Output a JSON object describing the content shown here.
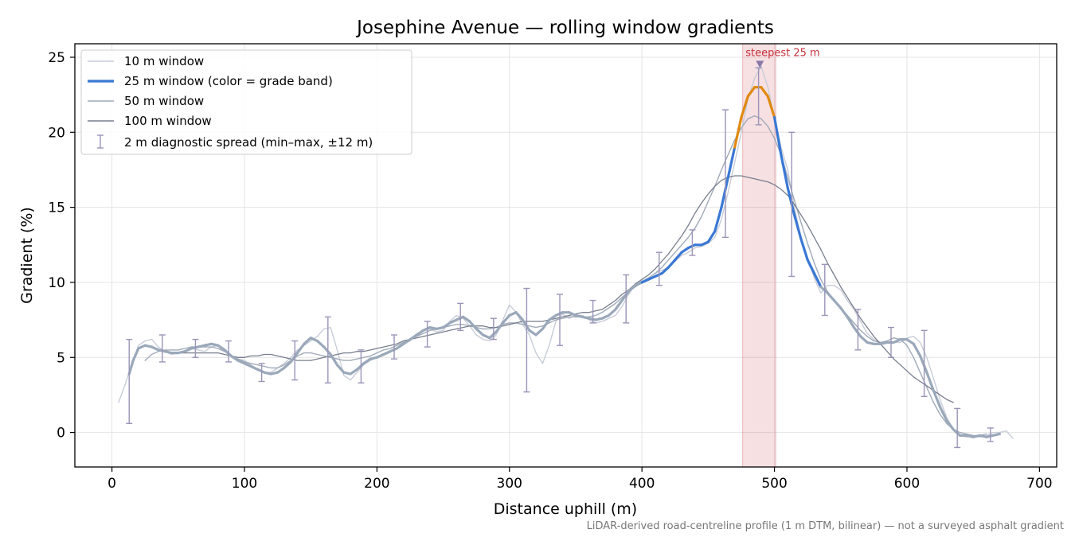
{
  "chart_data": {
    "type": "line",
    "title": "Josephine Avenue — rolling window gradients",
    "xlabel": "Distance uphill (m)",
    "ylabel": "Gradient (%)",
    "xlim": [
      -28,
      713
    ],
    "ylim": [
      -2.3,
      25.9
    ],
    "xticks": [
      0,
      100,
      200,
      300,
      400,
      500,
      600,
      700
    ],
    "yticks": [
      0,
      5,
      10,
      15,
      20,
      25
    ],
    "grid": true,
    "legend_position": "top-left",
    "series": [
      {
        "name": "10 m window",
        "color": "#c8ccd8",
        "x": [
          5,
          10,
          15,
          20,
          25,
          30,
          35,
          40,
          45,
          50,
          55,
          60,
          65,
          70,
          75,
          80,
          85,
          90,
          95,
          100,
          105,
          110,
          115,
          120,
          125,
          130,
          135,
          140,
          145,
          150,
          155,
          160,
          165,
          170,
          175,
          180,
          185,
          190,
          195,
          200,
          205,
          210,
          215,
          220,
          225,
          230,
          235,
          240,
          245,
          250,
          255,
          260,
          265,
          270,
          275,
          280,
          285,
          290,
          295,
          300,
          305,
          310,
          315,
          320,
          325,
          330,
          335,
          340,
          345,
          350,
          355,
          360,
          365,
          370,
          375,
          380,
          385,
          390,
          395,
          400,
          405,
          410,
          415,
          420,
          425,
          430,
          435,
          440,
          445,
          450,
          455,
          460,
          465,
          470,
          475,
          480,
          485,
          490,
          495,
          500,
          505,
          510,
          515,
          520,
          525,
          530,
          535,
          540,
          545,
          550,
          555,
          560,
          565,
          570,
          575,
          580,
          585,
          590,
          595,
          600,
          605,
          610,
          615,
          620,
          625,
          630,
          635,
          640,
          645,
          650,
          655,
          660,
          665,
          670,
          675,
          680
        ],
        "values": [
          2.0,
          3.2,
          4.6,
          5.8,
          6.1,
          6.2,
          5.7,
          5.4,
          5.2,
          5.3,
          5.4,
          5.6,
          5.5,
          5.4,
          5.7,
          5.8,
          5.5,
          5.1,
          4.9,
          4.8,
          4.5,
          4.2,
          4.0,
          4.0,
          4.3,
          4.6,
          5.0,
          5.5,
          5.8,
          6.1,
          6.4,
          6.9,
          7.0,
          5.5,
          3.8,
          3.5,
          4.0,
          4.5,
          4.8,
          5.0,
          5.2,
          5.4,
          5.6,
          5.9,
          6.1,
          6.5,
          6.8,
          6.9,
          6.7,
          6.8,
          7.4,
          7.8,
          7.6,
          7.1,
          6.5,
          6.2,
          6.1,
          6.5,
          7.5,
          8.5,
          8.0,
          7.2,
          6.5,
          5.3,
          4.6,
          5.8,
          7.4,
          7.9,
          7.6,
          7.8,
          7.8,
          7.5,
          7.3,
          7.4,
          7.6,
          7.8,
          8.4,
          9.2,
          9.9,
          10.1,
          10.3,
          10.6,
          10.8,
          11.0,
          11.4,
          11.8,
          12.0,
          12.3,
          12.4,
          12.6,
          13.0,
          14.2,
          16.0,
          18.0,
          20.0,
          22.2,
          23.6,
          24.4,
          23.0,
          21.0,
          19.0,
          17.5,
          15.0,
          13.0,
          11.6,
          10.3,
          9.3,
          9.8,
          9.8,
          9.5,
          8.8,
          8.2,
          7.4,
          6.6,
          6.2,
          6.0,
          6.0,
          6.0,
          6.0,
          6.3,
          6.4,
          6.0,
          5.0,
          3.6,
          2.2,
          1.0,
          0.2,
          -0.2,
          -0.3,
          -0.2,
          -0.3,
          -0.2,
          0.0,
          0.0,
          0.1,
          -0.4
        ]
      },
      {
        "name": "25 m window (color = grade band)",
        "color": "#3a78d4",
        "grade_band_colors": {
          "below_10": "#9aa8ba",
          "10_to_20": "#3a78d4",
          "above_20": "#e08a10"
        },
        "x": [
          13,
          16,
          20,
          25,
          30,
          35,
          40,
          45,
          50,
          55,
          60,
          65,
          70,
          75,
          80,
          85,
          90,
          95,
          100,
          105,
          110,
          115,
          120,
          125,
          130,
          135,
          140,
          145,
          150,
          155,
          160,
          165,
          170,
          175,
          180,
          185,
          190,
          195,
          200,
          205,
          210,
          215,
          220,
          225,
          230,
          235,
          240,
          245,
          250,
          255,
          260,
          265,
          270,
          275,
          280,
          285,
          290,
          295,
          300,
          305,
          310,
          315,
          320,
          325,
          330,
          335,
          340,
          345,
          350,
          355,
          360,
          365,
          370,
          375,
          380,
          385,
          390,
          395,
          400,
          405,
          410,
          415,
          420,
          425,
          430,
          435,
          440,
          445,
          450,
          455,
          460,
          465,
          470,
          475,
          480,
          485,
          490,
          495,
          500,
          505,
          510,
          515,
          520,
          525,
          530,
          535,
          540,
          545,
          550,
          555,
          560,
          565,
          570,
          575,
          580,
          585,
          590,
          595,
          600,
          605,
          610,
          615,
          620,
          625,
          630,
          635,
          640,
          645,
          650,
          655,
          660,
          665,
          670
        ],
        "values": [
          3.9,
          4.8,
          5.6,
          5.8,
          5.7,
          5.5,
          5.4,
          5.3,
          5.3,
          5.4,
          5.6,
          5.7,
          5.8,
          5.9,
          5.8,
          5.5,
          5.1,
          4.8,
          4.6,
          4.4,
          4.2,
          4.0,
          3.9,
          4.0,
          4.3,
          4.7,
          5.3,
          5.9,
          6.3,
          6.1,
          5.7,
          5.2,
          4.5,
          4.0,
          3.9,
          4.2,
          4.6,
          4.9,
          5.0,
          5.2,
          5.4,
          5.6,
          5.9,
          6.2,
          6.5,
          6.8,
          7.0,
          6.9,
          7.0,
          7.3,
          7.5,
          7.7,
          7.4,
          6.9,
          6.5,
          6.3,
          6.7,
          7.3,
          7.8,
          8.0,
          7.5,
          6.8,
          6.5,
          6.9,
          7.5,
          7.8,
          8.0,
          8.0,
          7.8,
          7.7,
          7.6,
          7.5,
          7.6,
          7.8,
          8.2,
          8.8,
          9.4,
          9.8,
          10.0,
          10.2,
          10.4,
          10.6,
          11.0,
          11.5,
          12.0,
          12.3,
          12.5,
          12.5,
          12.7,
          13.4,
          15.0,
          17.0,
          19.0,
          21.0,
          22.4,
          23.0,
          23.0,
          22.4,
          21.0,
          18.5,
          16.3,
          14.5,
          12.9,
          11.5,
          10.6,
          9.7,
          9.3,
          8.8,
          8.3,
          7.7,
          7.0,
          6.4,
          6.0,
          5.9,
          5.9,
          6.0,
          6.0,
          6.2,
          6.2,
          5.9,
          5.1,
          4.0,
          2.8,
          1.7,
          0.8,
          0.2,
          -0.2,
          -0.2,
          -0.3,
          -0.2,
          -0.3,
          -0.2,
          -0.1
        ]
      },
      {
        "name": "50 m window",
        "color": "#a0aab8",
        "x": [
          25,
          30,
          35,
          40,
          45,
          50,
          55,
          60,
          65,
          70,
          75,
          80,
          85,
          90,
          95,
          100,
          105,
          110,
          115,
          120,
          125,
          130,
          135,
          140,
          145,
          150,
          155,
          160,
          165,
          170,
          175,
          180,
          185,
          190,
          195,
          200,
          205,
          210,
          215,
          220,
          225,
          230,
          235,
          240,
          245,
          250,
          255,
          260,
          265,
          270,
          275,
          280,
          285,
          290,
          295,
          300,
          305,
          310,
          315,
          320,
          325,
          330,
          335,
          340,
          345,
          350,
          355,
          360,
          365,
          370,
          375,
          380,
          385,
          390,
          395,
          400,
          405,
          410,
          415,
          420,
          425,
          430,
          435,
          440,
          445,
          450,
          455,
          460,
          465,
          470,
          475,
          480,
          485,
          490,
          495,
          500,
          505,
          510,
          515,
          520,
          525,
          530,
          535,
          540,
          545,
          550,
          555,
          560,
          565,
          570,
          575,
          580,
          585,
          590,
          595,
          600,
          605,
          610,
          615,
          620,
          625,
          630,
          635,
          640,
          645,
          650,
          655,
          660
        ],
        "values": [
          4.8,
          5.2,
          5.4,
          5.5,
          5.5,
          5.5,
          5.6,
          5.7,
          5.7,
          5.7,
          5.7,
          5.6,
          5.4,
          5.1,
          4.9,
          4.7,
          4.6,
          4.5,
          4.4,
          4.3,
          4.3,
          4.5,
          4.8,
          5.1,
          5.3,
          5.3,
          5.2,
          5.1,
          5.0,
          4.9,
          4.8,
          4.8,
          4.9,
          5.0,
          5.1,
          5.3,
          5.5,
          5.6,
          5.8,
          6.0,
          6.2,
          6.4,
          6.6,
          6.8,
          6.9,
          7.0,
          7.1,
          7.2,
          7.2,
          7.1,
          7.0,
          6.9,
          6.9,
          7.0,
          7.2,
          7.3,
          7.3,
          7.2,
          7.1,
          7.0,
          7.1,
          7.3,
          7.5,
          7.6,
          7.7,
          7.7,
          7.7,
          7.7,
          7.8,
          8.0,
          8.3,
          8.6,
          9.0,
          9.4,
          9.7,
          10.0,
          10.3,
          10.6,
          11.0,
          11.5,
          12.0,
          12.5,
          13.0,
          13.6,
          14.4,
          15.4,
          16.4,
          17.5,
          18.5,
          19.5,
          20.3,
          20.9,
          21.1,
          20.9,
          20.4,
          19.6,
          18.5,
          17.0,
          15.5,
          14.0,
          12.6,
          11.3,
          10.2,
          9.4,
          8.8,
          8.3,
          7.8,
          7.3,
          6.8,
          6.4,
          6.1,
          6.0,
          6.1,
          6.3,
          6.2,
          5.8,
          5.0,
          4.0,
          3.0,
          2.0,
          1.2,
          0.6,
          0.2,
          0.0,
          -0.1,
          -0.2,
          -0.2,
          -0.1
        ]
      },
      {
        "name": "100 m window",
        "color": "#787e8e",
        "x": [
          50,
          55,
          60,
          65,
          70,
          75,
          80,
          85,
          90,
          95,
          100,
          105,
          110,
          115,
          120,
          125,
          130,
          135,
          140,
          145,
          150,
          155,
          160,
          165,
          170,
          175,
          180,
          185,
          190,
          195,
          200,
          205,
          210,
          215,
          220,
          225,
          230,
          235,
          240,
          245,
          250,
          255,
          260,
          265,
          270,
          275,
          280,
          285,
          290,
          295,
          300,
          305,
          310,
          315,
          320,
          325,
          330,
          335,
          340,
          345,
          350,
          355,
          360,
          365,
          370,
          375,
          380,
          385,
          390,
          395,
          400,
          405,
          410,
          415,
          420,
          425,
          430,
          435,
          440,
          445,
          450,
          455,
          460,
          465,
          470,
          475,
          480,
          485,
          490,
          495,
          500,
          505,
          510,
          515,
          520,
          525,
          530,
          535,
          540,
          545,
          550,
          555,
          560,
          565,
          570,
          575,
          580,
          585,
          590,
          595,
          600,
          605,
          610,
          615,
          620,
          625,
          630,
          635
        ],
        "values": [
          5.3,
          5.3,
          5.3,
          5.3,
          5.3,
          5.3,
          5.3,
          5.2,
          5.1,
          5.0,
          5.0,
          5.1,
          5.1,
          5.2,
          5.2,
          5.1,
          5.0,
          4.9,
          4.8,
          4.8,
          4.8,
          4.9,
          5.0,
          5.1,
          5.2,
          5.3,
          5.3,
          5.4,
          5.4,
          5.5,
          5.6,
          5.7,
          5.8,
          5.9,
          6.1,
          6.2,
          6.3,
          6.4,
          6.5,
          6.6,
          6.7,
          6.8,
          6.9,
          7.0,
          7.1,
          7.1,
          7.1,
          7.0,
          7.0,
          7.1,
          7.2,
          7.3,
          7.4,
          7.4,
          7.4,
          7.4,
          7.5,
          7.6,
          7.7,
          7.8,
          7.9,
          8.0,
          8.0,
          8.1,
          8.2,
          8.5,
          8.8,
          9.2,
          9.5,
          9.9,
          10.2,
          10.5,
          10.9,
          11.4,
          11.9,
          12.5,
          13.1,
          13.8,
          14.6,
          15.3,
          15.9,
          16.4,
          16.8,
          17.0,
          17.1,
          17.1,
          17.0,
          16.9,
          16.8,
          16.7,
          16.5,
          16.2,
          15.8,
          15.2,
          14.5,
          13.8,
          13.0,
          12.2,
          11.3,
          10.5,
          9.7,
          9.0,
          8.3,
          7.6,
          7.0,
          6.4,
          5.9,
          5.4,
          4.9,
          4.5,
          4.1,
          3.7,
          3.4,
          3.1,
          2.8,
          2.5,
          2.2,
          2.0
        ]
      }
    ],
    "diagnostic_spread": {
      "name": "2 m diagnostic spread (min–max, ±12 m)",
      "color": "#9a94b8",
      "x": [
        13,
        38,
        63,
        88,
        113,
        138,
        163,
        188,
        213,
        238,
        263,
        288,
        313,
        338,
        363,
        388,
        413,
        438,
        463,
        488,
        513,
        538,
        563,
        588,
        613,
        638,
        663
      ],
      "min": [
        0.6,
        4.7,
        5.0,
        4.7,
        3.4,
        3.5,
        3.3,
        3.3,
        4.9,
        5.7,
        6.8,
        6.2,
        2.7,
        5.8,
        7.3,
        7.3,
        9.8,
        11.8,
        13.0,
        20.5,
        10.4,
        7.8,
        5.5,
        5.0,
        2.4,
        -1.0,
        -0.6
      ],
      "max": [
        6.2,
        6.5,
        6.2,
        6.1,
        4.6,
        6.1,
        7.7,
        5.5,
        6.5,
        7.4,
        8.6,
        7.6,
        9.6,
        9.2,
        8.8,
        10.5,
        12.0,
        13.5,
        21.5,
        24.3,
        20.0,
        11.2,
        8.2,
        7.0,
        6.8,
        1.6,
        0.3
      ]
    },
    "highlight": {
      "label": "steepest 25 m",
      "x_start": 476,
      "x_end": 501,
      "peak_x": 489,
      "peak_y": 24.5,
      "color": "#c8303c"
    },
    "footnote": "LiDAR-derived road-centreline profile (1 m DTM, bilinear) — not a surveyed asphalt gradient"
  }
}
